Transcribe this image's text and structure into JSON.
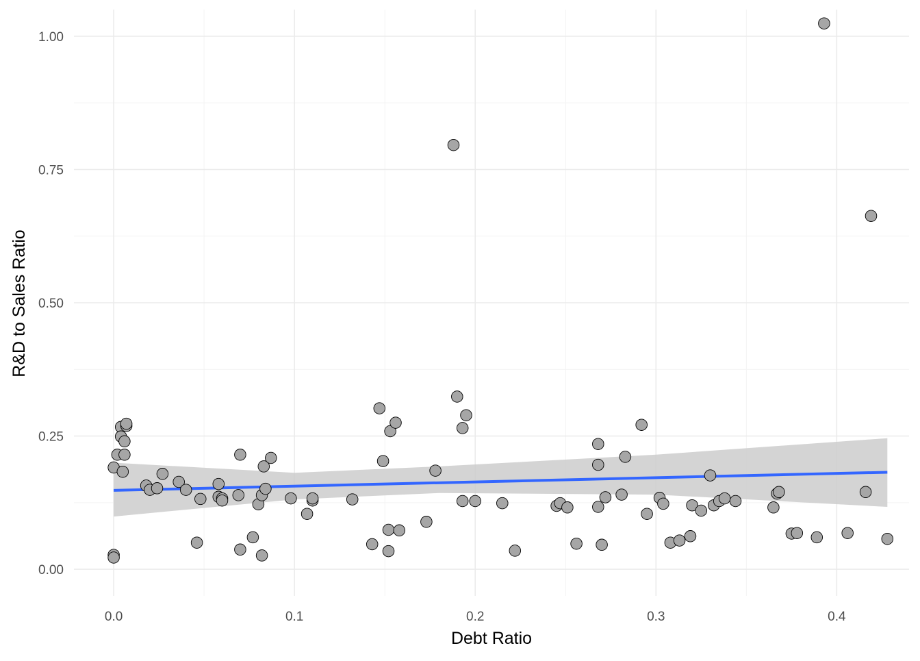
{
  "chart_data": {
    "type": "scatter",
    "xlabel": "Debt Ratio",
    "ylabel": "R&D to Sales Ratio",
    "xlim": [
      -0.022,
      0.44
    ],
    "ylim": [
      -0.05,
      1.05
    ],
    "x_ticks": [
      0.0,
      0.1,
      0.2,
      0.3,
      0.4
    ],
    "x_tick_labels": [
      "0.0",
      "0.1",
      "0.2",
      "0.3",
      "0.4"
    ],
    "y_ticks": [
      0.0,
      0.25,
      0.5,
      0.75,
      1.0
    ],
    "y_tick_labels": [
      "0.00",
      "0.25",
      "0.50",
      "0.75",
      "1.00"
    ],
    "grid": true,
    "point_color": "#a6a6a6",
    "point_edge_color": "#000000",
    "trend_color": "#3366ff",
    "ribbon_color": "#cccccc",
    "series": [
      {
        "points": [
          [
            0.0,
            0.191
          ],
          [
            0.0,
            0.027
          ],
          [
            0.0,
            0.022
          ],
          [
            0.002,
            0.215
          ],
          [
            0.004,
            0.267
          ],
          [
            0.004,
            0.249
          ],
          [
            0.005,
            0.183
          ],
          [
            0.006,
            0.24
          ],
          [
            0.006,
            0.215
          ],
          [
            0.007,
            0.269
          ],
          [
            0.007,
            0.273
          ],
          [
            0.018,
            0.157
          ],
          [
            0.02,
            0.149
          ],
          [
            0.024,
            0.152
          ],
          [
            0.027,
            0.179
          ],
          [
            0.036,
            0.164
          ],
          [
            0.04,
            0.149
          ],
          [
            0.046,
            0.05
          ],
          [
            0.048,
            0.132
          ],
          [
            0.058,
            0.16
          ],
          [
            0.058,
            0.136
          ],
          [
            0.06,
            0.133
          ],
          [
            0.06,
            0.129
          ],
          [
            0.069,
            0.139
          ],
          [
            0.07,
            0.037
          ],
          [
            0.07,
            0.215
          ],
          [
            0.077,
            0.06
          ],
          [
            0.08,
            0.122
          ],
          [
            0.082,
            0.026
          ],
          [
            0.082,
            0.139
          ],
          [
            0.083,
            0.193
          ],
          [
            0.084,
            0.151
          ],
          [
            0.087,
            0.209
          ],
          [
            0.098,
            0.133
          ],
          [
            0.107,
            0.104
          ],
          [
            0.11,
            0.129
          ],
          [
            0.11,
            0.133
          ],
          [
            0.132,
            0.131
          ],
          [
            0.143,
            0.047
          ],
          [
            0.147,
            0.302
          ],
          [
            0.149,
            0.203
          ],
          [
            0.152,
            0.074
          ],
          [
            0.152,
            0.034
          ],
          [
            0.153,
            0.259
          ],
          [
            0.156,
            0.275
          ],
          [
            0.158,
            0.073
          ],
          [
            0.173,
            0.089
          ],
          [
            0.178,
            0.185
          ],
          [
            0.188,
            0.796
          ],
          [
            0.19,
            0.324
          ],
          [
            0.193,
            0.265
          ],
          [
            0.193,
            0.128
          ],
          [
            0.195,
            0.289
          ],
          [
            0.2,
            0.128
          ],
          [
            0.215,
            0.124
          ],
          [
            0.222,
            0.035
          ],
          [
            0.245,
            0.119
          ],
          [
            0.247,
            0.124
          ],
          [
            0.251,
            0.116
          ],
          [
            0.256,
            0.048
          ],
          [
            0.268,
            0.235
          ],
          [
            0.268,
            0.196
          ],
          [
            0.268,
            0.117
          ],
          [
            0.27,
            0.046
          ],
          [
            0.272,
            0.135
          ],
          [
            0.281,
            0.14
          ],
          [
            0.283,
            0.211
          ],
          [
            0.292,
            0.271
          ],
          [
            0.295,
            0.104
          ],
          [
            0.302,
            0.134
          ],
          [
            0.304,
            0.123
          ],
          [
            0.308,
            0.05
          ],
          [
            0.313,
            0.054
          ],
          [
            0.319,
            0.062
          ],
          [
            0.32,
            0.12
          ],
          [
            0.325,
            0.11
          ],
          [
            0.33,
            0.176
          ],
          [
            0.332,
            0.12
          ],
          [
            0.335,
            0.128
          ],
          [
            0.338,
            0.133
          ],
          [
            0.344,
            0.128
          ],
          [
            0.365,
            0.116
          ],
          [
            0.367,
            0.142
          ],
          [
            0.368,
            0.145
          ],
          [
            0.375,
            0.067
          ],
          [
            0.378,
            0.068
          ],
          [
            0.389,
            0.06
          ],
          [
            0.393,
            1.024
          ],
          [
            0.406,
            0.068
          ],
          [
            0.416,
            0.145
          ],
          [
            0.419,
            0.663
          ],
          [
            0.428,
            0.057
          ]
        ]
      }
    ],
    "trend_line": {
      "method": "linear regression with confidence band",
      "x": [
        0.0,
        0.428
      ],
      "y": [
        0.148,
        0.182
      ],
      "ribbon": [
        {
          "x": 0.0,
          "lower": 0.099,
          "upper": 0.2
        },
        {
          "x": 0.1,
          "lower": 0.131,
          "upper": 0.181
        },
        {
          "x": 0.18,
          "lower": 0.143,
          "upper": 0.193
        },
        {
          "x": 0.3,
          "lower": 0.14,
          "upper": 0.215
        },
        {
          "x": 0.428,
          "lower": 0.117,
          "upper": 0.246
        }
      ]
    }
  }
}
